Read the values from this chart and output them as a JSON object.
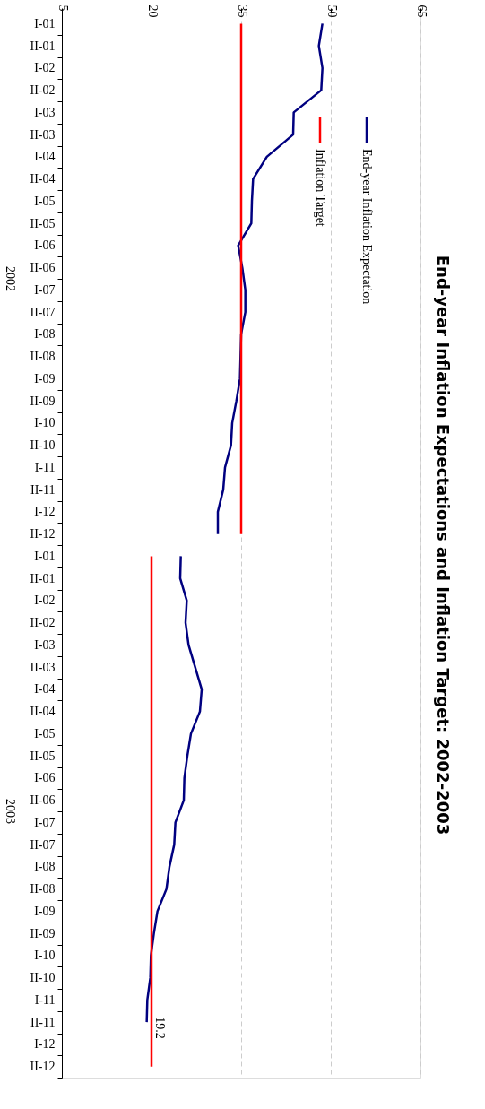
{
  "chart_data": {
    "type": "line",
    "title": "End-year Inflation Expectations and Inflation Target: 2002-2003",
    "categories": [
      "I-01",
      "II-01",
      "I-02",
      "II-02",
      "I-03",
      "II-03",
      "I-04",
      "II-04",
      "I-05",
      "II-05",
      "I-06",
      "II-06",
      "I-07",
      "II-07",
      "I-08",
      "II-08",
      "I-09",
      "II-09",
      "I-10",
      "II-10",
      "I-11",
      "II-11",
      "I-12",
      "II-12",
      "I-01",
      "II-01",
      "I-02",
      "II-02",
      "I-03",
      "II-03",
      "I-04",
      "II-04",
      "I-05",
      "II-05",
      "I-06",
      "II-06",
      "I-07",
      "II-07",
      "I-08",
      "II-08",
      "I-09",
      "II-09",
      "I-10",
      "II-10",
      "I-11",
      "II-11",
      "I-12",
      "II-12"
    ],
    "orientation": "horizontal",
    "series": [
      {
        "name": "End-year Inflation Expectation",
        "color": "#000080",
        "values": [
          48.6,
          48.0,
          48.6,
          48.4,
          43.8,
          43.7,
          39.3,
          37.0,
          36.8,
          36.7,
          34.5,
          35.2,
          35.7,
          35.7,
          35.0,
          34.9,
          34.8,
          34.2,
          33.5,
          33.3,
          32.3,
          32.0,
          31.1,
          31.1,
          24.9,
          24.8,
          25.9,
          25.7,
          26.2,
          27.3,
          28.4,
          28.1,
          26.6,
          26.0,
          25.5,
          25.4,
          24.0,
          23.8,
          23.0,
          22.5,
          21.0,
          20.4,
          19.9,
          19.8,
          19.3,
          19.2,
          null,
          null
        ],
        "value_labels": [
          null,
          null,
          null,
          null,
          null,
          null,
          null,
          null,
          null,
          null,
          null,
          null,
          null,
          null,
          null,
          null,
          null,
          null,
          null,
          null,
          null,
          null,
          null,
          null,
          null,
          null,
          null,
          null,
          null,
          null,
          null,
          null,
          null,
          null,
          null,
          null,
          null,
          null,
          null,
          null,
          null,
          null,
          null,
          null,
          null,
          "19.2",
          null,
          null
        ]
      },
      {
        "name": "Inflation Target",
        "color": "#ff0000",
        "values": [
          35,
          35,
          35,
          35,
          35,
          35,
          35,
          35,
          35,
          35,
          35,
          35,
          35,
          35,
          35,
          35,
          35,
          35,
          35,
          35,
          35,
          35,
          35,
          35,
          20,
          20,
          20,
          20,
          20,
          20,
          20,
          20,
          20,
          20,
          20,
          20,
          20,
          20,
          20,
          20,
          20,
          20,
          20,
          20,
          20,
          20,
          20,
          20
        ]
      }
    ],
    "annotations": [
      "2002",
      "2003"
    ],
    "xlim": [
      5,
      65
    ],
    "xticks": [
      5,
      20,
      35,
      50,
      65
    ],
    "grid": "x",
    "legend": "right",
    "marker": "none",
    "line_style": "solid"
  }
}
